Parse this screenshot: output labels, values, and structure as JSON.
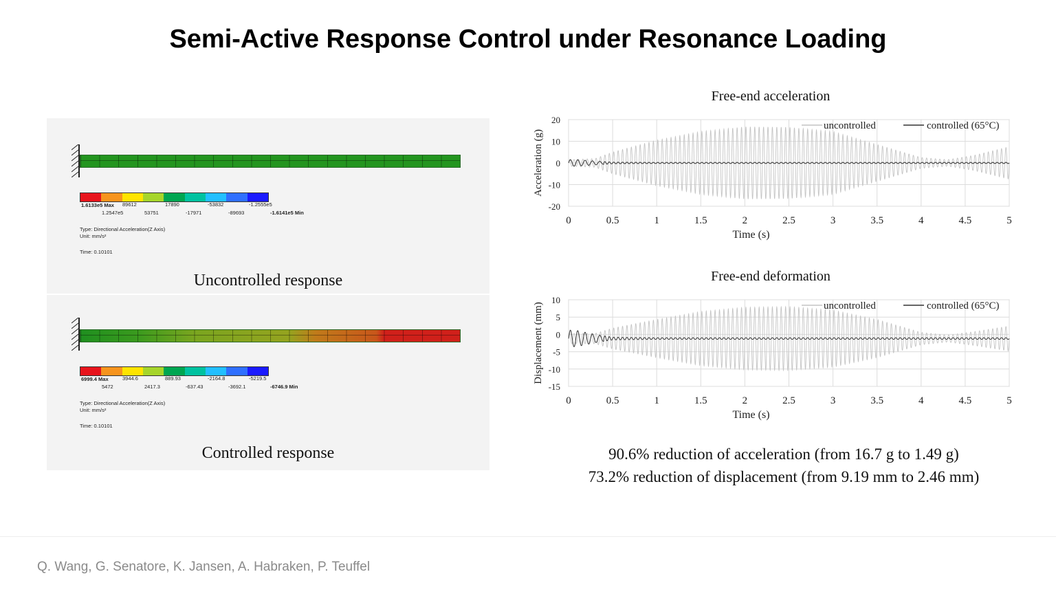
{
  "slide": {
    "title": "Semi-Active Response Control under Resonance Loading",
    "authors": "Q. Wang, G. Senatore, K. Jansen, A. Habraken, P. Teuffel",
    "summary": [
      "90.6% reduction of acceleration (from 16.7 g to 1.49 g)",
      "73.2% reduction of displacement (from 9.19 mm to 2.46 mm)"
    ]
  },
  "fe": {
    "legend_colors": [
      "#e8141c",
      "#f7941d",
      "#ffe400",
      "#a6d52b",
      "#00a651",
      "#00c2a0",
      "#22bfff",
      "#2f6fff",
      "#1a1aff"
    ],
    "uncontrolled": {
      "caption": "Uncontrolled response",
      "max": "1.6133e5 Max",
      "min": "-1.6141e5 Min",
      "top_values": [
        "89612",
        "17890",
        "-53832",
        "-1.2555e5"
      ],
      "bottom_values": [
        "1.2547e5",
        "53751",
        "-17971",
        "-89693"
      ],
      "type": "Type: Directional Acceleration(Z Axis)",
      "unit": "Unit: mm/s²",
      "time": "Time: 0.10101"
    },
    "controlled": {
      "caption": "Controlled response",
      "max": "6999.4 Max",
      "min": "-6746.9 Min",
      "top_values": [
        "3944.6",
        "889.93",
        "-2164.8",
        "-5219.5"
      ],
      "bottom_values": [
        "5472",
        "2417.3",
        "-637.43",
        "-3692.1"
      ],
      "type": "Type: Directional Acceleration(Z Axis)",
      "unit": "Unit: mm/s²",
      "time": "Time: 0.10101"
    }
  },
  "chart_data": [
    {
      "type": "line",
      "title": "Free-end acceleration",
      "xlabel": "Time (s)",
      "ylabel": "Acceleration (g)",
      "xlim": [
        0,
        5
      ],
      "ylim": [
        -20,
        20
      ],
      "xticks": [
        "0",
        "0.5",
        "1",
        "1.5",
        "2",
        "2.5",
        "3",
        "3.5",
        "4",
        "4.5",
        "5"
      ],
      "yticks": [
        "20",
        "10",
        "0",
        "-10",
        "-20"
      ],
      "grid": true,
      "legend": "top-right",
      "series": [
        {
          "name": "uncontrolled",
          "color": "#c4c4c4",
          "envelope_t": [
            0,
            0.3,
            0.5,
            1.0,
            1.5,
            2.0,
            2.5,
            3.0,
            3.5,
            4.0,
            4.3,
            4.6,
            5.0
          ],
          "envelope_amp": [
            1.5,
            2,
            5,
            10.5,
            14.5,
            16.7,
            16.5,
            14.5,
            8.5,
            2.5,
            1.5,
            3.5,
            7.5
          ]
        },
        {
          "name": "controlled (65°C)",
          "color": "#333333",
          "envelope_t": [
            0,
            0.1,
            0.3,
            0.5,
            1.0,
            5.0
          ],
          "envelope_amp": [
            1.5,
            1.49,
            0.9,
            0.4,
            0.3,
            0.3
          ]
        }
      ]
    },
    {
      "type": "line",
      "title": "Free-end deformation",
      "xlabel": "Time (s)",
      "ylabel": "Displacement (mm)",
      "xlim": [
        0,
        5
      ],
      "ylim": [
        -15,
        10
      ],
      "xticks": [
        "0",
        "0.5",
        "1",
        "1.5",
        "2",
        "2.5",
        "3",
        "3.5",
        "4",
        "4.5",
        "5"
      ],
      "yticks": [
        "10",
        "5",
        "0",
        "-5",
        "-10",
        "-15"
      ],
      "grid": true,
      "legend": "top-right",
      "series": [
        {
          "name": "uncontrolled",
          "color": "#c4c4c4",
          "offset": -1.2,
          "envelope_t": [
            0,
            0.3,
            0.5,
            1.0,
            1.5,
            2.0,
            2.5,
            3.0,
            3.5,
            4.0,
            4.3,
            4.6,
            5.0
          ],
          "envelope_amp": [
            1.5,
            1.5,
            3,
            5.5,
            7.8,
            9.0,
            9.19,
            8.2,
            5.5,
            1.8,
            1.0,
            2.0,
            3.6
          ]
        },
        {
          "name": "controlled (65°C)",
          "color": "#333333",
          "offset": -1.2,
          "envelope_t": [
            0,
            0.1,
            0.3,
            0.5,
            1.0,
            5.0
          ],
          "envelope_amp": [
            2.46,
            2.3,
            1.2,
            0.4,
            0.25,
            0.25
          ]
        }
      ]
    }
  ]
}
